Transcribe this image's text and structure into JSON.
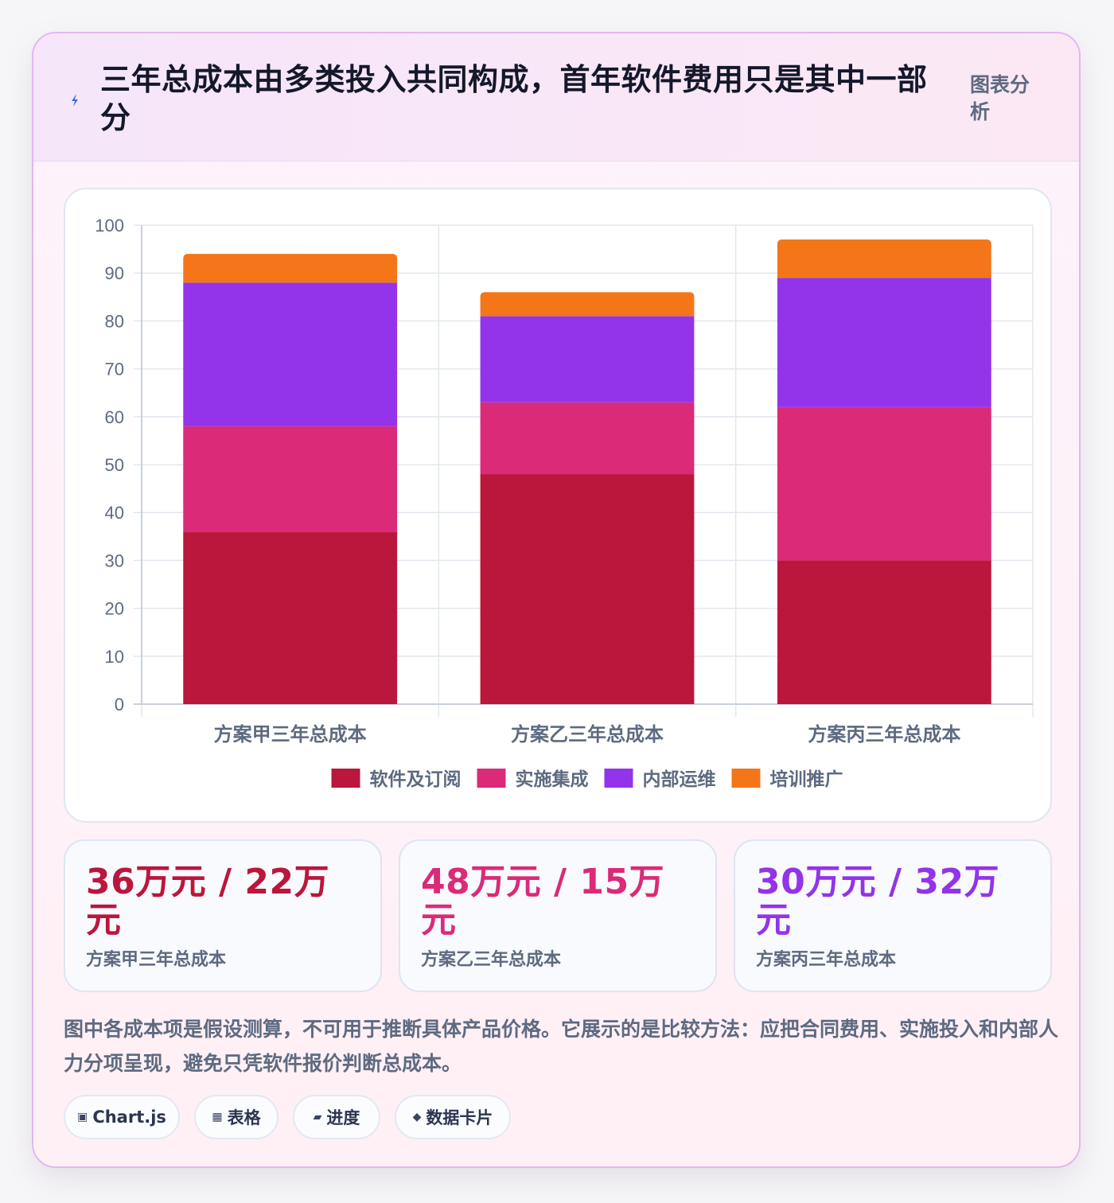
{
  "header": {
    "title": "三年总成本由多类投入共同构成，首年软件费用只是其中一部分",
    "tag": "图表分析"
  },
  "colors": {
    "software": "#bb163c",
    "implementation": "#db2a77",
    "ops": "#9333ea",
    "training": "#f47619",
    "grid": "#e2e7ee",
    "axis_text": "#5e6a80"
  },
  "chart_data": {
    "type": "bar",
    "stacked": true,
    "categories": [
      "方案甲三年总成本",
      "方案乙三年总成本",
      "方案丙三年总成本"
    ],
    "series": [
      {
        "name": "软件及订阅",
        "color": "#bb163c",
        "values": [
          36,
          48,
          30
        ]
      },
      {
        "name": "实施集成",
        "color": "#db2a77",
        "values": [
          22,
          15,
          32
        ]
      },
      {
        "name": "内部运维",
        "color": "#9333ea",
        "values": [
          30,
          18,
          27
        ]
      },
      {
        "name": "培训推广",
        "color": "#f47619",
        "values": [
          6,
          5,
          8
        ]
      }
    ],
    "ylim": [
      0,
      100
    ],
    "yticks": [
      0,
      10,
      20,
      30,
      40,
      50,
      60,
      70,
      80,
      90,
      100
    ],
    "grid": true,
    "legend_position": "bottom"
  },
  "stats": [
    {
      "value": "36万元 / 22万元",
      "label": "方案甲三年总成本",
      "color": "#bb163c"
    },
    {
      "value": "48万元 / 15万元",
      "label": "方案乙三年总成本",
      "color": "#db2a77"
    },
    {
      "value": "30万元 / 32万元",
      "label": "方案丙三年总成本",
      "color": "#9333ea"
    }
  ],
  "note": "图中各成本项是假设测算，不可用于推断具体产品价格。它展示的是比较方法：应把合同费用、实施投入和内部人力分项呈现，避免只凭软件报价判断总成本。",
  "pills": [
    {
      "icon": "▣",
      "label": "Chart.js"
    },
    {
      "icon": "▦",
      "label": "表格"
    },
    {
      "icon": "▰",
      "label": "进度"
    },
    {
      "icon": "◆",
      "label": "数据卡片"
    }
  ]
}
